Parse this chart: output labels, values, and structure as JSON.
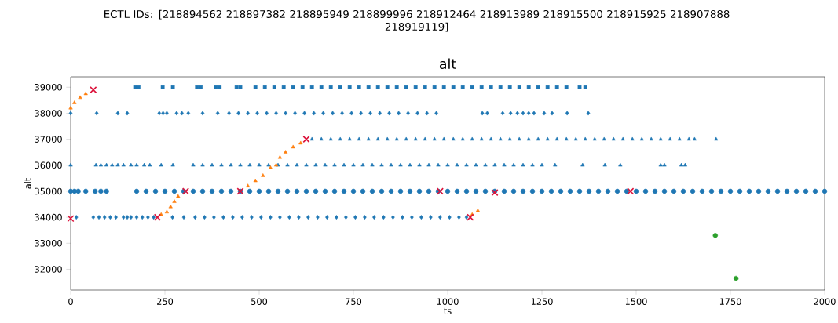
{
  "chart_data": {
    "type": "scatter",
    "title": "ECTL IDs: [218894562 218897382 218895949 218899996 218912464 218913989 218915500 218915925 218907888 218919119]",
    "subtitle": "alt",
    "xlabel": "ts",
    "ylabel": "alt",
    "xlim": [
      0,
      2000
    ],
    "ylim": [
      31200,
      39400
    ],
    "xticks": [
      0,
      250,
      500,
      750,
      1000,
      1250,
      1500,
      1750,
      2000
    ],
    "yticks": [
      32000,
      33000,
      34000,
      35000,
      36000,
      37000,
      38000,
      39000
    ],
    "series": [
      {
        "color": "#1f77b4",
        "marker": "square",
        "x": [
          171,
          180,
          244,
          271,
          335,
          345,
          385,
          395,
          440,
          450,
          490,
          515,
          540,
          565,
          590,
          615,
          640,
          665,
          690,
          715,
          740,
          765,
          790,
          815,
          840,
          865,
          890,
          915,
          940,
          965,
          990,
          1015,
          1040,
          1065,
          1090,
          1115,
          1140,
          1165,
          1190,
          1215,
          1240,
          1265,
          1290,
          1315,
          1350,
          1365
        ],
        "values": [
          39000,
          39000,
          39000,
          39000,
          39000,
          39000,
          39000,
          39000,
          39000,
          39000,
          39000,
          39000,
          39000,
          39000,
          39000,
          39000,
          39000,
          39000,
          39000,
          39000,
          39000,
          39000,
          39000,
          39000,
          39000,
          39000,
          39000,
          39000,
          39000,
          39000,
          39000,
          39000,
          39000,
          39000,
          39000,
          39000,
          39000,
          39000,
          39000,
          39000,
          39000,
          39000,
          39000,
          39000,
          39000,
          39000
        ]
      },
      {
        "color": "#1f77b4",
        "marker": "diamond",
        "x": [
          0,
          69,
          125,
          150,
          235,
          245,
          255,
          281,
          295,
          312,
          350,
          390,
          420,
          445,
          470,
          495,
          520,
          545,
          570,
          595,
          620,
          645,
          670,
          695,
          720,
          745,
          770,
          795,
          820,
          845,
          870,
          895,
          920,
          945,
          970,
          1092,
          1105,
          1146,
          1167,
          1185,
          1200,
          1215,
          1229,
          1256,
          1277,
          1317,
          1373
        ],
        "values": [
          38000,
          38000,
          38000,
          38000,
          38000,
          38000,
          38000,
          38000,
          38000,
          38000,
          38000,
          38000,
          38000,
          38000,
          38000,
          38000,
          38000,
          38000,
          38000,
          38000,
          38000,
          38000,
          38000,
          38000,
          38000,
          38000,
          38000,
          38000,
          38000,
          38000,
          38000,
          38000,
          38000,
          38000,
          38000,
          38000,
          38000,
          38000,
          38000,
          38000,
          38000,
          38000,
          38000,
          38000,
          38000,
          38000,
          38000
        ]
      },
      {
        "color": "#1f77b4",
        "marker": "triangle",
        "x": [
          640,
          665,
          690,
          715,
          740,
          765,
          790,
          815,
          840,
          865,
          890,
          915,
          940,
          965,
          990,
          1015,
          1040,
          1065,
          1090,
          1115,
          1140,
          1165,
          1190,
          1215,
          1240,
          1265,
          1290,
          1315,
          1340,
          1365,
          1390,
          1415,
          1440,
          1465,
          1490,
          1515,
          1540,
          1565,
          1590,
          1615,
          1640,
          1655,
          1712
        ],
        "values": [
          37000,
          37000,
          37000,
          37000,
          37000,
          37000,
          37000,
          37000,
          37000,
          37000,
          37000,
          37000,
          37000,
          37000,
          37000,
          37000,
          37000,
          37000,
          37000,
          37000,
          37000,
          37000,
          37000,
          37000,
          37000,
          37000,
          37000,
          37000,
          37000,
          37000,
          37000,
          37000,
          37000,
          37000,
          37000,
          37000,
          37000,
          37000,
          37000,
          37000,
          37000,
          37000,
          37000
        ]
      },
      {
        "color": "#1f77b4",
        "marker": "triangle",
        "x": [
          0,
          67,
          80,
          95,
          110,
          125,
          140,
          160,
          175,
          195,
          210,
          240,
          271,
          325,
          350,
          375,
          400,
          425,
          450,
          475,
          500,
          525,
          550,
          575,
          600,
          625,
          650,
          675,
          700,
          725,
          750,
          775,
          800,
          825,
          850,
          875,
          900,
          925,
          950,
          975,
          1000,
          1025,
          1050,
          1075,
          1100,
          1125,
          1150,
          1175,
          1200,
          1225,
          1250,
          1285,
          1358,
          1417,
          1458,
          1565,
          1575,
          1620,
          1630
        ],
        "values": [
          36000,
          36000,
          36000,
          36000,
          36000,
          36000,
          36000,
          36000,
          36000,
          36000,
          36000,
          36000,
          36000,
          36000,
          36000,
          36000,
          36000,
          36000,
          36000,
          36000,
          36000,
          36000,
          36000,
          36000,
          36000,
          36000,
          36000,
          36000,
          36000,
          36000,
          36000,
          36000,
          36000,
          36000,
          36000,
          36000,
          36000,
          36000,
          36000,
          36000,
          36000,
          36000,
          36000,
          36000,
          36000,
          36000,
          36000,
          36000,
          36000,
          36000,
          36000,
          36000,
          36000,
          36000,
          36000,
          36000,
          36000,
          36000,
          36000
        ]
      },
      {
        "color": "#1f77b4",
        "marker": "circle",
        "x": [
          0,
          10,
          20,
          40,
          65,
          80,
          95,
          175,
          200,
          225,
          250,
          275,
          300,
          325,
          350,
          375,
          400,
          425,
          450,
          475,
          500,
          525,
          550,
          575,
          600,
          625,
          650,
          675,
          700,
          725,
          750,
          775,
          800,
          825,
          850,
          875,
          900,
          925,
          950,
          975,
          1000,
          1025,
          1050,
          1075,
          1100,
          1125,
          1150,
          1175,
          1200,
          1225,
          1250,
          1275,
          1300,
          1325,
          1350,
          1375,
          1400,
          1425,
          1450,
          1475,
          1500,
          1525,
          1550,
          1575,
          1600,
          1625,
          1650,
          1675,
          1700,
          1725,
          1750,
          1775,
          1800,
          1825,
          1850,
          1875,
          1900,
          1925,
          1950,
          1975,
          2000
        ],
        "values": [
          35000,
          35000,
          35000,
          35000,
          35000,
          35000,
          35000,
          35000,
          35000,
          35000,
          35000,
          35000,
          35000,
          35000,
          35000,
          35000,
          35000,
          35000,
          35000,
          35000,
          35000,
          35000,
          35000,
          35000,
          35000,
          35000,
          35000,
          35000,
          35000,
          35000,
          35000,
          35000,
          35000,
          35000,
          35000,
          35000,
          35000,
          35000,
          35000,
          35000,
          35000,
          35000,
          35000,
          35000,
          35000,
          35000,
          35000,
          35000,
          35000,
          35000,
          35000,
          35000,
          35000,
          35000,
          35000,
          35000,
          35000,
          35000,
          35000,
          35000,
          35000,
          35000,
          35000,
          35000,
          35000,
          35000,
          35000,
          35000,
          35000,
          35000,
          35000,
          35000,
          35000,
          35000,
          35000,
          35000,
          35000,
          35000,
          35000,
          35000,
          35000
        ]
      },
      {
        "color": "#1f77b4",
        "marker": "diamond",
        "x": [
          15,
          60,
          75,
          90,
          105,
          120,
          140,
          150,
          160,
          175,
          190,
          205,
          220,
          270,
          300,
          330,
          355,
          380,
          405,
          430,
          455,
          480,
          505,
          530,
          555,
          580,
          605,
          630,
          655,
          680,
          705,
          730,
          755,
          780,
          805,
          830,
          855,
          880,
          905,
          930,
          955,
          980,
          1005,
          1030,
          1050
        ],
        "values": [
          34000,
          34000,
          34000,
          34000,
          34000,
          34000,
          34000,
          34000,
          34000,
          34000,
          34000,
          34000,
          34000,
          34000,
          34000,
          34000,
          34000,
          34000,
          34000,
          34000,
          34000,
          34000,
          34000,
          34000,
          34000,
          34000,
          34000,
          34000,
          34000,
          34000,
          34000,
          34000,
          34000,
          34000,
          34000,
          34000,
          34000,
          34000,
          34000,
          34000,
          34000,
          34000,
          34000,
          34000,
          34000
        ]
      },
      {
        "color": "#ff7f0e",
        "marker": "triangle",
        "x": [
          0,
          10,
          25,
          40,
          240,
          255,
          265,
          275,
          285,
          470,
          490,
          510,
          530,
          545,
          555,
          570,
          590,
          610,
          1065,
          1080
        ],
        "values": [
          38200,
          38400,
          38600,
          38750,
          34100,
          34200,
          34400,
          34600,
          34800,
          35200,
          35400,
          35600,
          35900,
          36000,
          36300,
          36500,
          36700,
          36850,
          34100,
          34250
        ]
      },
      {
        "color": "#2ca02c",
        "marker": "circle",
        "x": [
          1710,
          1765
        ],
        "values": [
          33300,
          31650
        ]
      },
      {
        "color": "#dc143c",
        "marker": "cross",
        "x": [
          0,
          60,
          230,
          305,
          450,
          625,
          980,
          1060,
          1125,
          1485
        ],
        "values": [
          33950,
          38900,
          34000,
          35000,
          35000,
          37000,
          35000,
          34000,
          34950,
          35000
        ]
      }
    ]
  }
}
